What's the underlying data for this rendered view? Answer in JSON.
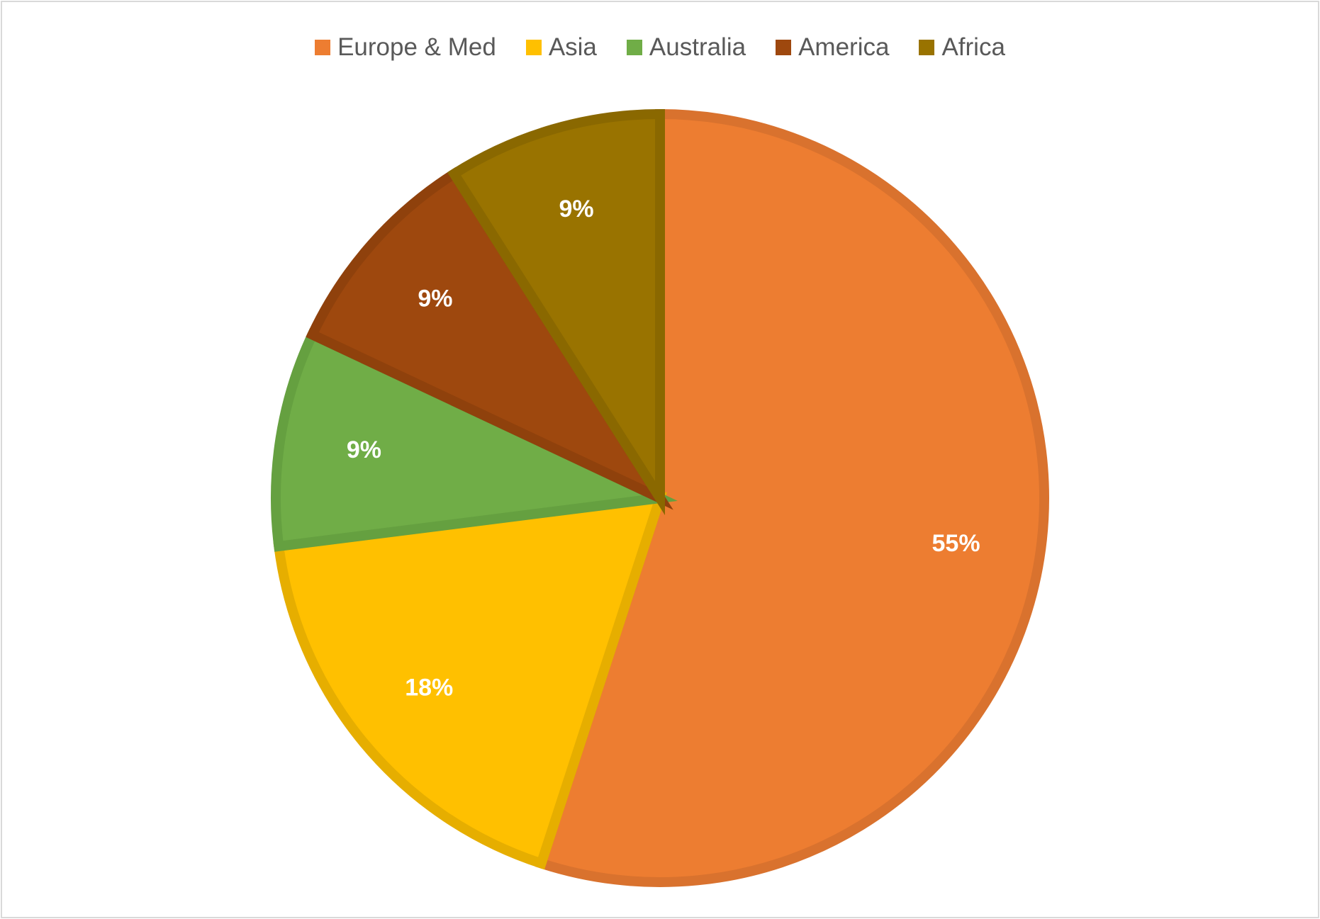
{
  "chart_data": {
    "type": "pie",
    "title": "",
    "legend_position": "top",
    "slices": [
      {
        "name": "Europe & Med",
        "value": 55,
        "label": "55%",
        "color": "#ED7D31",
        "border": "#D9722E"
      },
      {
        "name": "Asia",
        "value": 18,
        "label": "18%",
        "color": "#FFC000",
        "border": "#E6AE00"
      },
      {
        "name": "Australia",
        "value": 9,
        "label": "9%",
        "color": "#70AD47",
        "border": "#65A040"
      },
      {
        "name": "America",
        "value": 9,
        "label": "9%",
        "color": "#9E480E",
        "border": "#8F410C"
      },
      {
        "name": "Africa",
        "value": 9,
        "label": "9%",
        "color": "#997300",
        "border": "#8A6800"
      }
    ]
  }
}
